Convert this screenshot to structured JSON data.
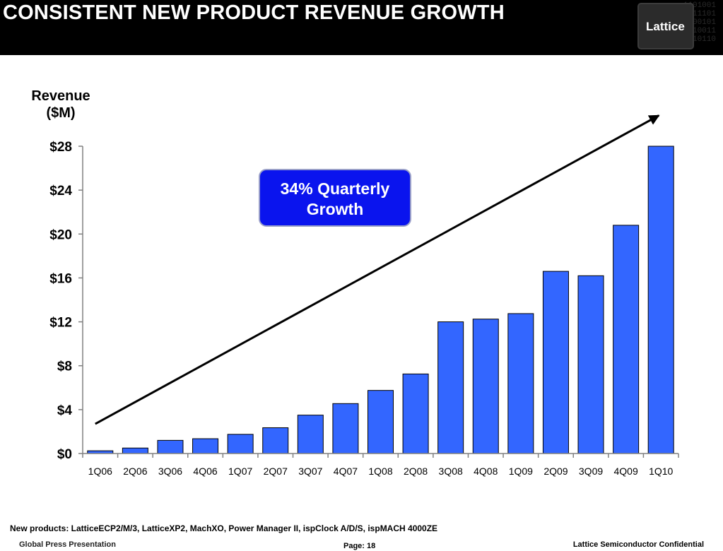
{
  "header": {
    "title": "CONSISTENT NEW PRODUCT REVENUE GROWTH",
    "logo_text": "Lattice"
  },
  "colors": {
    "header_bg": "#000000",
    "bar_fill": "#3366ff",
    "callout_bg": "#0a14ee",
    "arrow": "#000000"
  },
  "icons": [
    "lattice-chip-logo",
    "growth-trend-arrow"
  ],
  "chart_data": {
    "type": "bar",
    "ylabel": "Revenue ($M)",
    "ylabel_lines": [
      "Revenue",
      "($M)"
    ],
    "xlabel": "",
    "ylim": [
      0,
      28
    ],
    "yticks": [
      0,
      4,
      8,
      12,
      16,
      20,
      24,
      28
    ],
    "ytick_labels": [
      "$0",
      "$4",
      "$8",
      "$12",
      "$16",
      "$20",
      "$24",
      "$28"
    ],
    "categories": [
      "1Q06",
      "2Q06",
      "3Q06",
      "4Q06",
      "1Q07",
      "2Q07",
      "3Q07",
      "4Q07",
      "1Q08",
      "2Q08",
      "3Q08",
      "4Q08",
      "1Q09",
      "2Q09",
      "3Q09",
      "4Q09",
      "1Q10"
    ],
    "values": [
      0.25,
      0.5,
      1.2,
      1.35,
      1.75,
      2.35,
      3.5,
      4.55,
      5.75,
      7.25,
      12.0,
      12.25,
      12.75,
      16.6,
      16.2,
      20.8,
      28.0
    ],
    "grid": false,
    "legend": "none",
    "annotation": {
      "lines": [
        "34% Quarterly",
        "Growth"
      ],
      "text": "34% Quarterly Growth"
    },
    "trend_arrow": {
      "from_value": 2.7,
      "to_value": 30.8
    }
  },
  "footer": {
    "note": "New products:  LatticeECP2/M/3, LatticeXP2, MachXO, Power Manager II, ispClock A/D/S, ispMACH 4000ZE",
    "left": "Global Press Presentation",
    "page": "Page:  18",
    "right": "Lattice Semiconductor Confidential"
  }
}
